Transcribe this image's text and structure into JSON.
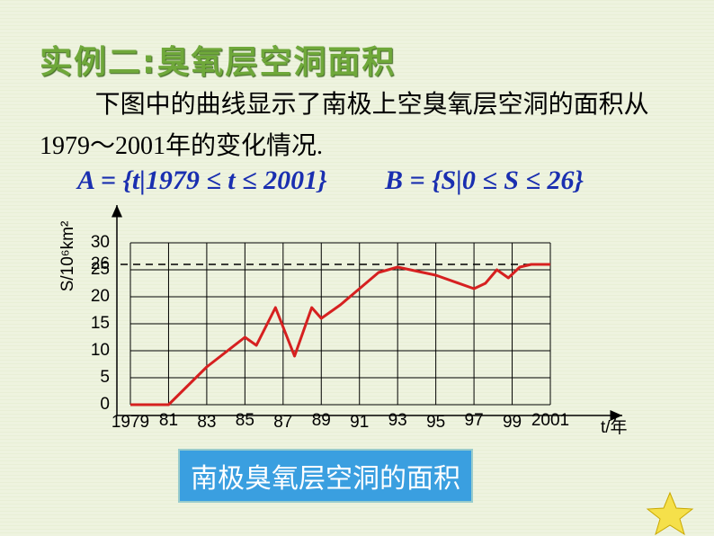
{
  "slide": {
    "title": "实例二:臭氧层空洞面积",
    "paragraph": "下图中的曲线显示了南极上空臭氧层空洞的面积从1979～2001年的变化情况.",
    "formula_a": "A = {t|1979 ≤ t ≤ 2001}",
    "formula_b": "B = {S|0 ≤ S ≤ 26}",
    "caption": "南极臭氧层空洞的面积"
  },
  "chart_data": {
    "type": "line",
    "x_label": "t/年",
    "y_label": "S/10⁶km²",
    "series": [
      {
        "name": "S",
        "color": "#d62020",
        "x": [
          1979,
          1981,
          1983,
          1985,
          1985.6,
          1986.6,
          1987.6,
          1988.5,
          1989,
          1990,
          1991,
          1992,
          1993,
          1995,
          1997,
          1997.6,
          1998.2,
          1998.8,
          1999.4,
          2000,
          2001
        ],
        "values": [
          0,
          0,
          7,
          12.5,
          11,
          18,
          9,
          18,
          16,
          18.5,
          21.5,
          24.5,
          25.5,
          24,
          21.5,
          22.5,
          25,
          23.5,
          25.5,
          26,
          26
        ]
      }
    ],
    "xlim": [
      1979,
      2001
    ],
    "ylim": [
      0,
      30
    ],
    "xticks": [
      1979,
      {
        "value": 1981,
        "label": "81"
      },
      {
        "value": 1983,
        "label": "83"
      },
      {
        "value": 1985,
        "label": "85"
      },
      {
        "value": 1987,
        "label": "87"
      },
      {
        "value": 1989,
        "label": "89"
      },
      {
        "value": 1991,
        "label": "91"
      },
      {
        "value": 1993,
        "label": "93"
      },
      {
        "value": 1995,
        "label": "95"
      },
      {
        "value": 1997,
        "label": "97"
      },
      {
        "value": 1999,
        "label": "99"
      },
      2001
    ],
    "yticks": [
      0,
      5,
      10,
      15,
      20,
      25,
      26,
      30
    ],
    "reference_lines": [
      26
    ],
    "grid": true
  }
}
